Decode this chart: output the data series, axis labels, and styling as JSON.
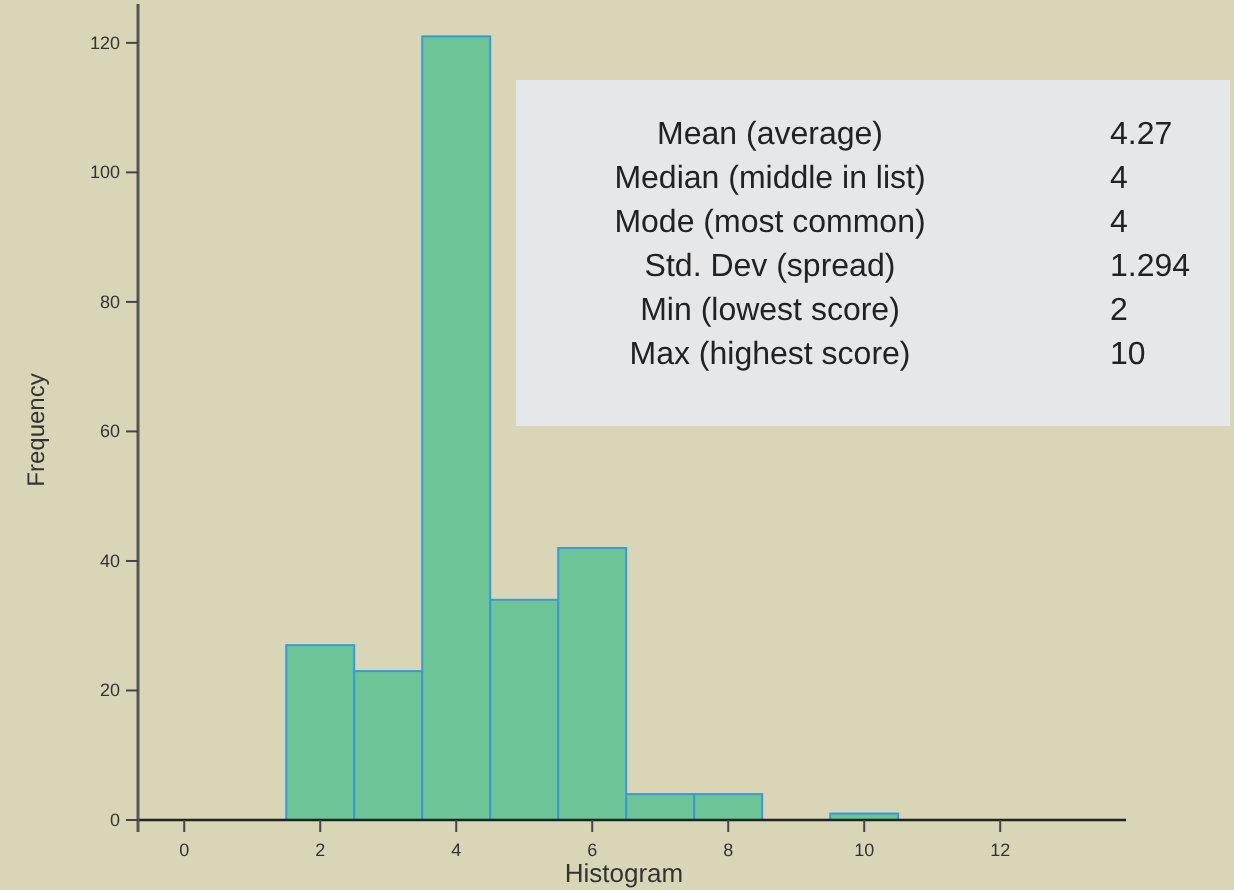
{
  "chart_data": {
    "type": "histogram",
    "xlabel": "Histogram",
    "ylabel": "Frequency",
    "bins": [
      1.5,
      2.5,
      3.5,
      4.5,
      5.5,
      6.5,
      7.5,
      8.5,
      9.5,
      10.5
    ],
    "values": [
      27,
      23,
      121,
      34,
      42,
      4,
      4,
      0,
      1
    ],
    "color": "#6cc497",
    "xlim": [
      -0.68,
      13.85
    ],
    "xticks": [
      0,
      2,
      4,
      6,
      8,
      10,
      12
    ],
    "ylim": [
      0,
      126
    ],
    "yticks": [
      0,
      20,
      40,
      60,
      80,
      100,
      120
    ],
    "grid": false,
    "annotations": [
      "Mean (average)",
      "4.27",
      "Median (middle in list)",
      "4",
      "Mode (most common)",
      "4",
      "Std. Dev (spread)",
      "1.294",
      "Min (lowest score)",
      "2",
      "Max (highest score)",
      "10"
    ]
  }
}
